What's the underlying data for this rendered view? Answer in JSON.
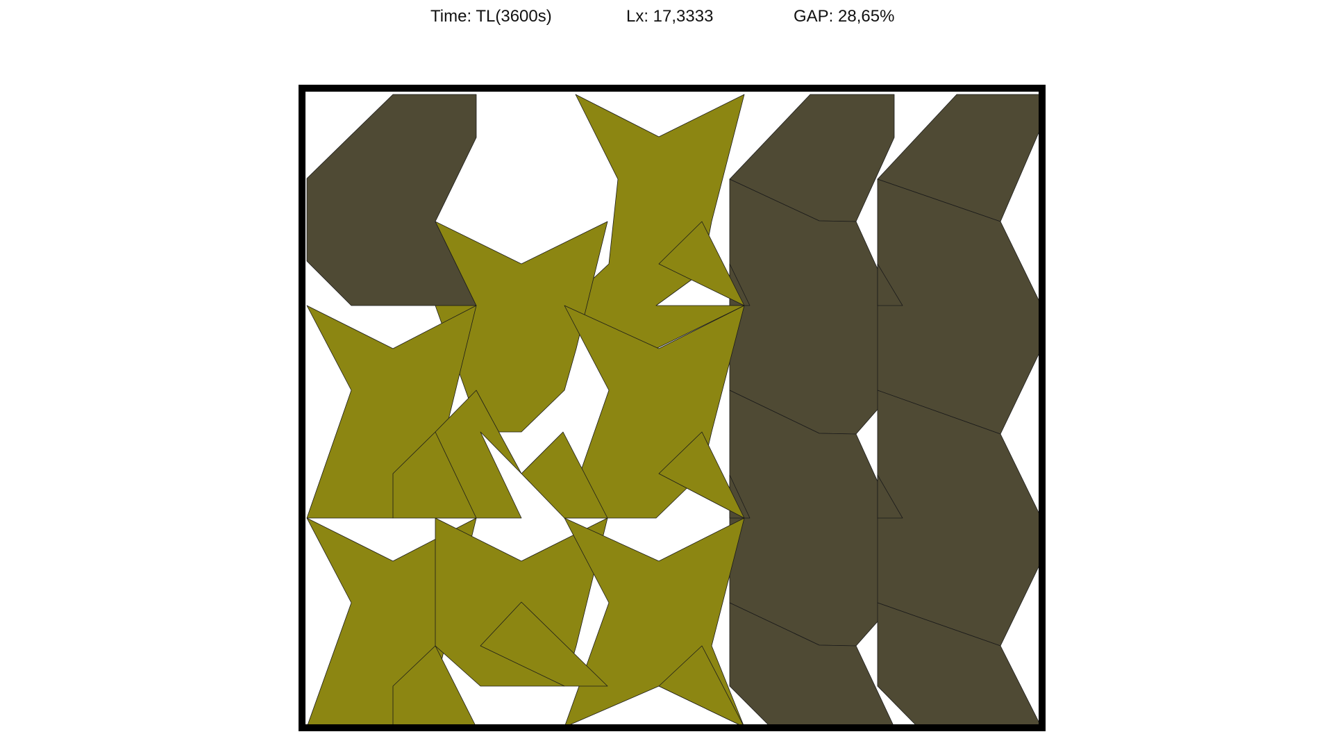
{
  "header": {
    "time_text": "Time: TL(3600s)",
    "lx_text": "Lx: 17,3333",
    "gap_text": "GAP: 28,65%"
  },
  "colors": {
    "frame": "#000000",
    "piece_dark": "#4f4a34",
    "piece_olive": "#8c8612",
    "edge": "#1a1a1a"
  }
}
